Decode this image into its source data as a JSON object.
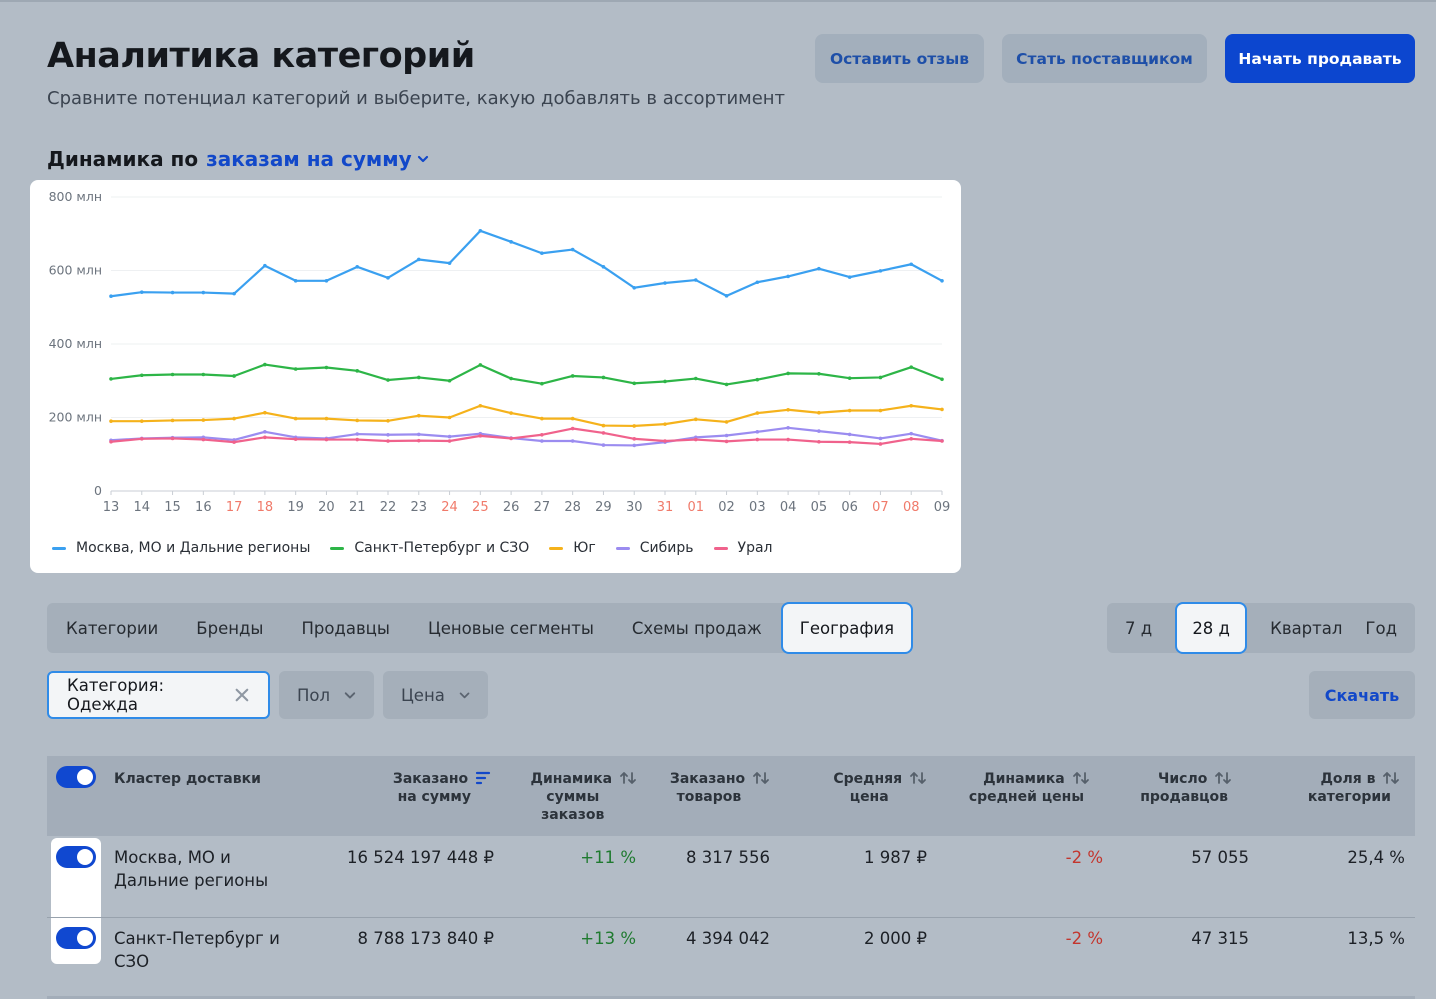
{
  "header": {
    "title": "Аналитика категорий",
    "subtitle": "Сравните потенциал категорий и выберите, какую добавлять в ассортимент",
    "buttons": {
      "feedback": "Оставить отзыв",
      "supplier": "Стать поставщиком",
      "start_selling": "Начать продавать"
    }
  },
  "dynamics": {
    "label": "Динамика по",
    "metric": "заказам на сумму"
  },
  "chart_data": {
    "type": "line",
    "y_ticks": [
      "0",
      "200 млн",
      "400 млн",
      "600 млн",
      "800 млн"
    ],
    "ylim": [
      0,
      800
    ],
    "grid": true,
    "categories": [
      "13",
      "14",
      "15",
      "16",
      "17",
      "18",
      "19",
      "20",
      "21",
      "22",
      "23",
      "24",
      "25",
      "26",
      "27",
      "28",
      "29",
      "30",
      "31",
      "01",
      "02",
      "03",
      "04",
      "05",
      "06",
      "07",
      "08",
      "09"
    ],
    "weekend_categories": [
      "17",
      "18",
      "24",
      "25",
      "31",
      "01",
      "07",
      "08"
    ],
    "weekend_color": "#f07a6a",
    "legend_position": "bottom-left",
    "series": [
      {
        "name": "Москва, МО и Дальние регионы",
        "color": "#3aa0f0",
        "values": [
          530,
          541,
          540,
          540,
          537,
          613,
          572,
          572,
          610,
          580,
          630,
          620,
          708,
          678,
          647,
          657,
          610,
          553,
          566,
          574,
          531,
          568,
          584,
          605,
          582,
          599,
          617,
          572
        ]
      },
      {
        "name": "Санкт-Петербург и СЗО",
        "color": "#2db547",
        "values": [
          305,
          315,
          317,
          317,
          313,
          344,
          332,
          336,
          327,
          302,
          309,
          300,
          343,
          306,
          292,
          313,
          309,
          293,
          298,
          306,
          290,
          303,
          320,
          319,
          307,
          309,
          337,
          304
        ]
      },
      {
        "name": "Юг",
        "color": "#f5b21b",
        "values": [
          190,
          190,
          192,
          193,
          197,
          213,
          197,
          197,
          192,
          191,
          205,
          200,
          232,
          212,
          197,
          197,
          178,
          177,
          182,
          195,
          188,
          212,
          221,
          213,
          219,
          219,
          232,
          222
        ]
      },
      {
        "name": "Сибирь",
        "color": "#9b8cf0",
        "values": [
          138,
          143,
          145,
          146,
          139,
          161,
          146,
          143,
          155,
          153,
          154,
          148,
          156,
          144,
          136,
          136,
          125,
          124,
          133,
          146,
          151,
          161,
          172,
          163,
          154,
          143,
          156,
          137
        ]
      },
      {
        "name": "Урал",
        "color": "#f0628c",
        "values": [
          134,
          142,
          143,
          140,
          133,
          146,
          141,
          140,
          140,
          136,
          137,
          136,
          150,
          143,
          153,
          170,
          158,
          142,
          136,
          140,
          135,
          140,
          140,
          134,
          133,
          128,
          142,
          136
        ]
      }
    ]
  },
  "tabs": [
    "Категории",
    "Бренды",
    "Продавцы",
    "Ценовые сегменты",
    "Схемы продаж",
    "География"
  ],
  "periods": [
    "7 д",
    "28 д",
    "Квартал",
    "Год"
  ],
  "filters": {
    "category": "Категория: Одежда",
    "gender": "Пол",
    "price": "Цена"
  },
  "download": "Скачать",
  "table": {
    "headers": {
      "cluster": "Кластер доставки",
      "ordered_sum_1": "Заказано",
      "ordered_sum_2": "на сумму",
      "dyn_sum_1": "Динамика",
      "dyn_sum_2": "суммы",
      "dyn_sum_3": "заказов",
      "ordered_items_1": "Заказано",
      "ordered_items_2": "товаров",
      "avg_price_1": "Средняя",
      "avg_price_2": "цена",
      "dyn_avg_1": "Динамика",
      "dyn_avg_2": "средней цены",
      "sellers_1": "Число",
      "sellers_2": "продавцов",
      "share_1": "Доля в",
      "share_2": "категории"
    },
    "rows": [
      {
        "cluster_1": "Москва, МО и",
        "cluster_2": "Дальние регионы",
        "ordered_sum": "16 524 197 448 ₽",
        "dyn_sum": "+11 %",
        "ordered_items": "8 317 556",
        "avg_price": "1 987 ₽",
        "dyn_avg": "-2 %",
        "sellers": "57 055",
        "share": "25,4 %"
      },
      {
        "cluster_1": "Санкт-Петербург и",
        "cluster_2": "СЗО",
        "ordered_sum": "8 788 173 840 ₽",
        "dyn_sum": "+13 %",
        "ordered_items": "4 394 042",
        "avg_price": "2 000 ₽",
        "dyn_avg": "-2 %",
        "sellers": "47 315",
        "share": "13,5 %"
      }
    ]
  }
}
